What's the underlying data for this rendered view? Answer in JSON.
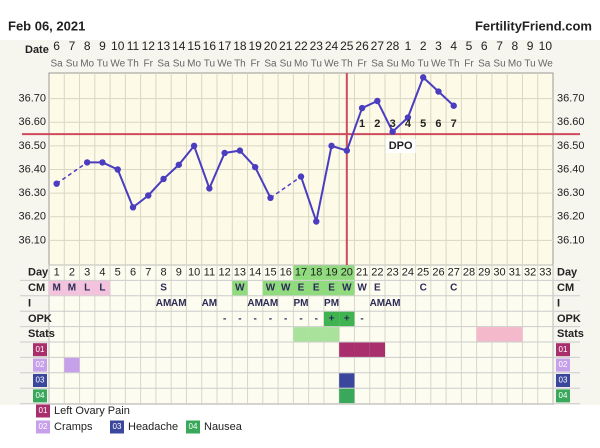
{
  "header": {
    "date": "Feb 06, 2021",
    "site": "FertilityFriend.com"
  },
  "chart_data": {
    "type": "line",
    "date_label": "Date",
    "dates": [
      6,
      7,
      8,
      9,
      10,
      11,
      12,
      13,
      14,
      15,
      16,
      17,
      18,
      19,
      20,
      21,
      22,
      23,
      24,
      25,
      26,
      27,
      28,
      1,
      2,
      3,
      4,
      5,
      6,
      7,
      8,
      9,
      10
    ],
    "weekdays": [
      "Sa",
      "Su",
      "Mo",
      "Tu",
      "We",
      "Th",
      "Fr",
      "Sa",
      "Su",
      "Mo",
      "Tu",
      "We",
      "Th",
      "Fr",
      "Sa",
      "Su",
      "Mo",
      "Tu",
      "We",
      "Th",
      "Fr",
      "Sa",
      "Su",
      "Mo",
      "Tu",
      "We",
      "Th",
      "Fr",
      "Sa",
      "Su",
      "Mo",
      "Tu",
      "We"
    ],
    "values": [
      36.34,
      null,
      36.43,
      36.43,
      36.4,
      36.24,
      36.29,
      36.36,
      36.42,
      36.5,
      36.32,
      36.47,
      36.48,
      36.41,
      36.28,
      null,
      36.37,
      36.18,
      36.5,
      36.48,
      36.66,
      36.69,
      36.56,
      36.62,
      36.79,
      36.73,
      36.67,
      null,
      null,
      null,
      null,
      null,
      null
    ],
    "color": "#4b3dc0",
    "ylim": [
      36.0,
      36.8
    ],
    "yticks": [
      {
        "value": 36.1,
        "label": "36.10"
      },
      {
        "value": 36.2,
        "label": "36.20"
      },
      {
        "value": 36.3,
        "label": "36.30"
      },
      {
        "value": 36.4,
        "label": "36.40"
      },
      {
        "value": 36.5,
        "label": "36.50"
      },
      {
        "value": 36.6,
        "label": "36.60"
      },
      {
        "value": 36.7,
        "label": "36.70"
      }
    ],
    "coverline": 36.55,
    "coverline_color": "#cf4b5c",
    "ovulation_day": 20,
    "dpo_label": "DPO",
    "dpo": [
      null,
      null,
      null,
      null,
      null,
      null,
      null,
      null,
      null,
      null,
      null,
      null,
      null,
      null,
      null,
      null,
      null,
      null,
      null,
      null,
      1,
      2,
      3,
      4,
      5,
      6,
      7,
      null,
      null,
      null,
      null,
      null,
      null
    ],
    "day_label": "Day",
    "days": [
      1,
      2,
      3,
      4,
      5,
      6,
      7,
      8,
      9,
      10,
      11,
      12,
      13,
      14,
      15,
      16,
      17,
      18,
      19,
      20,
      21,
      22,
      23,
      24,
      25,
      26,
      27,
      28,
      29,
      30,
      31,
      32,
      33
    ],
    "day_highlights": [
      {
        "color": "#8fdb7e",
        "days": [
          17,
          18,
          19,
          20
        ]
      }
    ],
    "rows": [
      {
        "label": "CM",
        "values": [
          "M",
          "M",
          "L",
          "L",
          null,
          null,
          null,
          "S",
          null,
          null,
          null,
          null,
          "W",
          null,
          "W",
          "W",
          "E",
          "E",
          "E",
          "W",
          "W",
          "E",
          null,
          null,
          "C",
          null,
          "C",
          null,
          null,
          null,
          null,
          null,
          null
        ],
        "highlights": [
          {
            "color": "#f3c3dd",
            "days": [
              1,
              2,
              3,
              4
            ]
          },
          {
            "color": "#8fdb7e",
            "days": [
              13,
              15,
              16,
              17,
              18,
              19,
              20
            ]
          }
        ]
      },
      {
        "label": "I",
        "values": [
          null,
          null,
          null,
          null,
          null,
          null,
          null,
          "AM",
          "AM",
          null,
          "AM",
          null,
          null,
          "AM",
          "AM",
          null,
          "PM",
          null,
          "PM",
          null,
          null,
          "AM",
          "AM",
          null,
          null,
          null,
          null,
          null,
          null,
          null,
          null,
          null,
          null
        ],
        "highlights": []
      },
      {
        "label": "OPK",
        "values": [
          null,
          null,
          null,
          null,
          null,
          null,
          null,
          null,
          null,
          null,
          null,
          "-",
          "-",
          "-",
          "-",
          "-",
          "-",
          "-",
          "+",
          "+",
          "-",
          null,
          null,
          null,
          null,
          null,
          null,
          null,
          null,
          null,
          null,
          null,
          null
        ],
        "highlights": [
          {
            "color": "#3fb34f",
            "days": [
              19,
              20
            ]
          }
        ]
      }
    ],
    "stats": {
      "label": "Stats",
      "highlights": [
        {
          "color": "#a9e39b",
          "days": [
            17,
            18,
            19
          ]
        },
        {
          "color": "#f4b9cb",
          "days": [
            29,
            30,
            31
          ]
        }
      ]
    },
    "symptoms": [
      {
        "code": "01",
        "name": "Left Ovary Pain",
        "color": "#a82f6c",
        "days": [
          20,
          21,
          22
        ]
      },
      {
        "code": "02",
        "name": "Cramps",
        "color": "#c7a0ea",
        "days": [
          2
        ]
      },
      {
        "code": "03",
        "name": "Headache",
        "color": "#3b479c",
        "days": [
          20
        ]
      },
      {
        "code": "04",
        "name": "Nausea",
        "color": "#39a85b",
        "days": [
          20
        ]
      }
    ]
  }
}
